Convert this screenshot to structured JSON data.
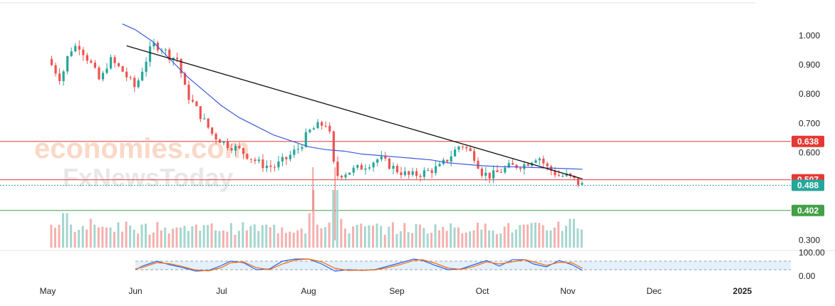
{
  "watermark": {
    "brand": "economies.com",
    "brand_sub": "FxNewsToday"
  },
  "chart_data": {
    "type": "candlestick",
    "title": "",
    "price_axis": {
      "ticks": [
        "1.000",
        "0.900",
        "0.800",
        "0.700",
        "0.600",
        "0.300"
      ],
      "range": [
        0.3,
        1.05
      ]
    },
    "time_axis": {
      "labels": [
        "May",
        "Jun",
        "Jul",
        "Aug",
        "Sep",
        "Oct",
        "Nov",
        "Dec",
        "2025"
      ]
    },
    "levels": [
      {
        "label": "0.638",
        "value": 0.638,
        "color": "#e53935"
      },
      {
        "label": "0.507",
        "value": 0.507,
        "color": "#e53935"
      },
      {
        "label": "0.488",
        "value": 0.488,
        "color": "#26a69a",
        "style": "current-price"
      },
      {
        "label": "0.402",
        "value": 0.402,
        "color": "#43a047"
      }
    ],
    "trendline": {
      "from": {
        "month": 0.9,
        "price": 0.965
      },
      "to": {
        "month": 6.17,
        "price": 0.51
      }
    },
    "series_path": [
      [
        0.0,
        0.92
      ],
      [
        0.15,
        0.85
      ],
      [
        0.25,
        0.95
      ],
      [
        0.35,
        0.97
      ],
      [
        0.5,
        0.9
      ],
      [
        0.6,
        0.84
      ],
      [
        0.7,
        0.92
      ],
      [
        0.85,
        0.88
      ],
      [
        1.0,
        0.82
      ],
      [
        1.1,
        0.9
      ],
      [
        1.2,
        0.97
      ],
      [
        1.3,
        0.96
      ],
      [
        1.4,
        0.93
      ],
      [
        1.5,
        0.92
      ],
      [
        1.55,
        0.84
      ],
      [
        1.6,
        0.8
      ],
      [
        1.75,
        0.73
      ],
      [
        1.9,
        0.66
      ],
      [
        2.05,
        0.63
      ],
      [
        2.2,
        0.61
      ],
      [
        2.3,
        0.59
      ],
      [
        2.45,
        0.56
      ],
      [
        2.6,
        0.55
      ],
      [
        2.75,
        0.58
      ],
      [
        2.9,
        0.62
      ],
      [
        3.0,
        0.67
      ],
      [
        3.1,
        0.69
      ],
      [
        3.2,
        0.7
      ],
      [
        3.25,
        0.65
      ],
      [
        3.3,
        0.52
      ],
      [
        3.4,
        0.53
      ],
      [
        3.6,
        0.55
      ],
      [
        3.8,
        0.58
      ],
      [
        4.0,
        0.54
      ],
      [
        4.15,
        0.52
      ],
      [
        4.3,
        0.53
      ],
      [
        4.5,
        0.55
      ],
      [
        4.6,
        0.58
      ],
      [
        4.75,
        0.63
      ],
      [
        4.9,
        0.59
      ],
      [
        5.0,
        0.53
      ],
      [
        5.1,
        0.52
      ],
      [
        5.3,
        0.55
      ],
      [
        5.5,
        0.56
      ],
      [
        5.65,
        0.59
      ],
      [
        5.75,
        0.55
      ],
      [
        5.9,
        0.52
      ],
      [
        6.0,
        0.52
      ],
      [
        6.1,
        0.5
      ],
      [
        6.17,
        0.488
      ]
    ],
    "moving_average": [
      [
        0.85,
        1.04
      ],
      [
        1.0,
        1.02
      ],
      [
        1.2,
        0.98
      ],
      [
        1.4,
        0.92
      ],
      [
        1.6,
        0.86
      ],
      [
        1.8,
        0.81
      ],
      [
        2.0,
        0.76
      ],
      [
        2.2,
        0.72
      ],
      [
        2.4,
        0.69
      ],
      [
        2.6,
        0.66
      ],
      [
        2.8,
        0.64
      ],
      [
        3.0,
        0.62
      ],
      [
        3.2,
        0.61
      ],
      [
        3.4,
        0.605
      ],
      [
        3.6,
        0.595
      ],
      [
        3.8,
        0.59
      ],
      [
        4.0,
        0.585
      ],
      [
        4.2,
        0.58
      ],
      [
        4.4,
        0.575
      ],
      [
        4.6,
        0.565
      ],
      [
        4.8,
        0.56
      ],
      [
        5.0,
        0.555
      ],
      [
        5.2,
        0.552
      ],
      [
        5.4,
        0.551
      ],
      [
        5.6,
        0.549
      ],
      [
        5.8,
        0.547
      ],
      [
        6.0,
        0.545
      ],
      [
        6.17,
        0.543
      ]
    ],
    "volume": [
      [
        0.05,
        0.4
      ],
      [
        0.2,
        0.6
      ],
      [
        0.35,
        0.3
      ],
      [
        0.5,
        0.5
      ],
      [
        0.7,
        0.35
      ],
      [
        0.9,
        0.45
      ],
      [
        1.1,
        0.4
      ],
      [
        1.3,
        0.3
      ],
      [
        1.5,
        0.35
      ],
      [
        1.7,
        0.4
      ],
      [
        1.9,
        0.3
      ],
      [
        2.1,
        0.35
      ],
      [
        2.3,
        0.3
      ],
      [
        2.5,
        0.4
      ],
      [
        2.7,
        0.35
      ],
      [
        2.9,
        0.3
      ],
      [
        3.0,
        0.6
      ],
      [
        3.05,
        1.0
      ],
      [
        3.1,
        0.4
      ],
      [
        3.3,
        1.0
      ],
      [
        3.35,
        0.5
      ],
      [
        3.5,
        0.3
      ],
      [
        3.7,
        0.35
      ],
      [
        3.9,
        0.3
      ],
      [
        4.1,
        0.25
      ],
      [
        4.3,
        0.3
      ],
      [
        4.5,
        0.3
      ],
      [
        4.7,
        0.35
      ],
      [
        4.9,
        0.3
      ],
      [
        5.1,
        0.3
      ],
      [
        5.3,
        0.35
      ],
      [
        5.5,
        0.4
      ],
      [
        5.7,
        0.35
      ],
      [
        5.9,
        0.45
      ],
      [
        6.05,
        0.5
      ],
      [
        6.15,
        0.3
      ]
    ],
    "oscillator": {
      "ticks": [
        "100.00",
        "0.00"
      ],
      "overbought": 80,
      "oversold": 20,
      "k": [
        [
          1.0,
          20
        ],
        [
          1.1,
          50
        ],
        [
          1.25,
          80
        ],
        [
          1.4,
          55
        ],
        [
          1.55,
          35
        ],
        [
          1.7,
          10
        ],
        [
          1.85,
          15
        ],
        [
          2.0,
          50
        ],
        [
          2.1,
          80
        ],
        [
          2.25,
          70
        ],
        [
          2.4,
          20
        ],
        [
          2.55,
          25
        ],
        [
          2.7,
          80
        ],
        [
          2.85,
          95
        ],
        [
          3.0,
          95
        ],
        [
          3.15,
          60
        ],
        [
          3.3,
          10
        ],
        [
          3.45,
          20
        ],
        [
          3.6,
          15
        ],
        [
          3.75,
          20
        ],
        [
          3.9,
          45
        ],
        [
          4.05,
          70
        ],
        [
          4.2,
          95
        ],
        [
          4.3,
          85
        ],
        [
          4.45,
          50
        ],
        [
          4.6,
          20
        ],
        [
          4.75,
          25
        ],
        [
          4.9,
          55
        ],
        [
          5.05,
          85
        ],
        [
          5.2,
          45
        ],
        [
          5.35,
          90
        ],
        [
          5.5,
          90
        ],
        [
          5.6,
          60
        ],
        [
          5.75,
          40
        ],
        [
          5.9,
          85
        ],
        [
          6.05,
          55
        ],
        [
          6.17,
          15
        ]
      ],
      "d": [
        [
          1.0,
          25
        ],
        [
          1.1,
          40
        ],
        [
          1.25,
          70
        ],
        [
          1.4,
          62
        ],
        [
          1.55,
          42
        ],
        [
          1.7,
          18
        ],
        [
          1.85,
          12
        ],
        [
          2.0,
          35
        ],
        [
          2.1,
          68
        ],
        [
          2.25,
          75
        ],
        [
          2.4,
          35
        ],
        [
          2.55,
          20
        ],
        [
          2.7,
          60
        ],
        [
          2.85,
          88
        ],
        [
          3.0,
          95
        ],
        [
          3.15,
          75
        ],
        [
          3.3,
          30
        ],
        [
          3.45,
          15
        ],
        [
          3.6,
          17
        ],
        [
          3.75,
          18
        ],
        [
          3.9,
          35
        ],
        [
          4.05,
          58
        ],
        [
          4.2,
          85
        ],
        [
          4.3,
          90
        ],
        [
          4.45,
          65
        ],
        [
          4.6,
          32
        ],
        [
          4.75,
          22
        ],
        [
          4.9,
          42
        ],
        [
          5.05,
          75
        ],
        [
          5.2,
          60
        ],
        [
          5.35,
          75
        ],
        [
          5.5,
          90
        ],
        [
          5.6,
          75
        ],
        [
          5.75,
          50
        ],
        [
          5.9,
          72
        ],
        [
          6.05,
          68
        ],
        [
          6.17,
          30
        ]
      ]
    }
  }
}
